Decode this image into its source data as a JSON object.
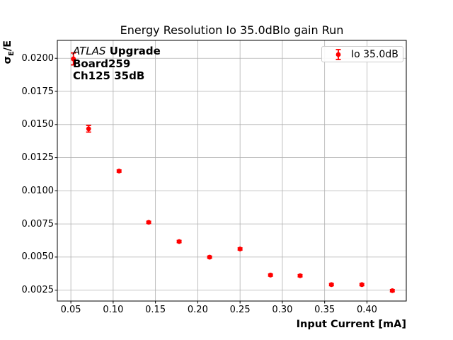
{
  "title": "Energy Resolution Io 35.0dBlo gain Run",
  "annotation": {
    "line1_italic": "ATLAS",
    "line1_bold": "Upgrade",
    "line2": "Board259",
    "line3": "Ch125 35dB"
  },
  "legend": {
    "label": "Io 35.0dB"
  },
  "axes": {
    "xlabel": "Input Current [mA]",
    "ylabel_sigma": "σ",
    "ylabel_sub": "E",
    "ylabel_rest": "/E"
  },
  "colors": {
    "series": "#ff0000",
    "grid": "#b0b0b0",
    "spine": "#000000",
    "legend_border": "#cccccc",
    "background": "#ffffff"
  },
  "chart_data": {
    "type": "scatter",
    "title": "Energy Resolution Io 35.0dBlo gain Run",
    "xlabel": "Input Current [mA]",
    "ylabel": "sigma_E/E",
    "grid": true,
    "legend_position": "upper right",
    "xlim": [
      0.034,
      0.4465
    ],
    "ylim": [
      0.00168,
      0.02135
    ],
    "xticks": [
      0.05,
      0.1,
      0.15,
      0.2,
      0.25,
      0.3,
      0.35,
      0.4
    ],
    "xtick_labels": [
      "0.05",
      "0.10",
      "0.15",
      "0.20",
      "0.25",
      "0.30",
      "0.35",
      "0.40"
    ],
    "yticks": [
      0.0025,
      0.005,
      0.0075,
      0.01,
      0.0125,
      0.015,
      0.0175,
      0.02
    ],
    "ytick_labels": [
      "0.0025",
      "0.0050",
      "0.0075",
      "0.0100",
      "0.0125",
      "0.0150",
      "0.0175",
      "0.0200"
    ],
    "series": [
      {
        "name": "Io 35.0dB",
        "color": "#ff0000",
        "marker": "o",
        "x": [
          0.053,
          0.071,
          0.107,
          0.142,
          0.178,
          0.214,
          0.25,
          0.286,
          0.321,
          0.358,
          0.394,
          0.43
        ],
        "y": [
          0.01995,
          0.01468,
          0.01149,
          0.00762,
          0.00617,
          0.00499,
          0.00561,
          0.00364,
          0.00359,
          0.00292,
          0.00292,
          0.00246
        ],
        "yerr": [
          0.00045,
          0.00025,
          8e-05,
          8e-05,
          8e-05,
          8e-05,
          8e-05,
          8e-05,
          8e-05,
          8e-05,
          8e-05,
          8e-05
        ]
      }
    ]
  }
}
